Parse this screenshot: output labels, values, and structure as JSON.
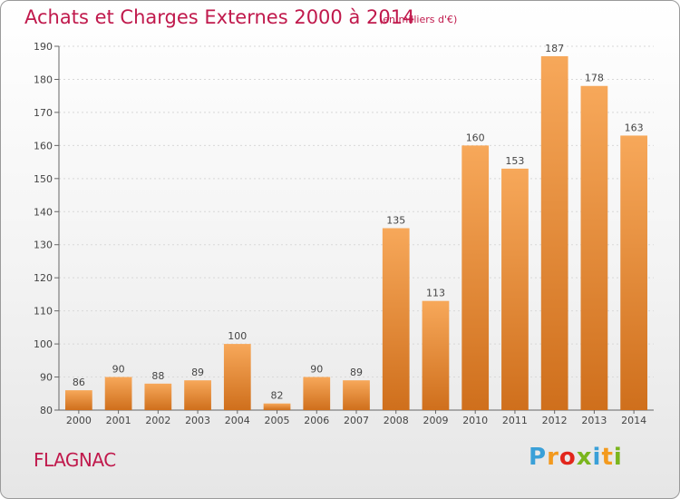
{
  "title": "Achats et Charges Externes 2000 à 2014",
  "subtitle": "(en milliers d'€)",
  "commune": "FLAGNAC",
  "brand": {
    "letters": [
      "P",
      "r",
      "o",
      "x",
      "i",
      "t",
      "i"
    ],
    "colors": [
      "#3aa0d8",
      "#f39a1e",
      "#e2261c",
      "#7ab51d",
      "#3aa0d8",
      "#f39a1e",
      "#7ab51d"
    ]
  },
  "colors": {
    "bar_light": "#f7a85a",
    "bar_dark": "#cf6f1c",
    "title": "#c0194c",
    "grid": "#d8d8d8",
    "text": "#444444"
  },
  "chart_data": {
    "type": "bar",
    "title": "Achats et Charges Externes 2000 à 2014",
    "subtitle": "(en milliers d'€)",
    "categories": [
      "2000",
      "2001",
      "2002",
      "2003",
      "2004",
      "2005",
      "2006",
      "2007",
      "2008",
      "2009",
      "2010",
      "2011",
      "2012",
      "2013",
      "2014"
    ],
    "values": [
      86,
      90,
      88,
      89,
      100,
      82,
      90,
      89,
      135,
      113,
      160,
      153,
      187,
      178,
      163
    ],
    "ylim": [
      80,
      190
    ],
    "yticks": [
      80,
      90,
      100,
      110,
      120,
      130,
      140,
      150,
      160,
      170,
      180,
      190
    ],
    "grid": true,
    "xlabel": "",
    "ylabel": ""
  }
}
